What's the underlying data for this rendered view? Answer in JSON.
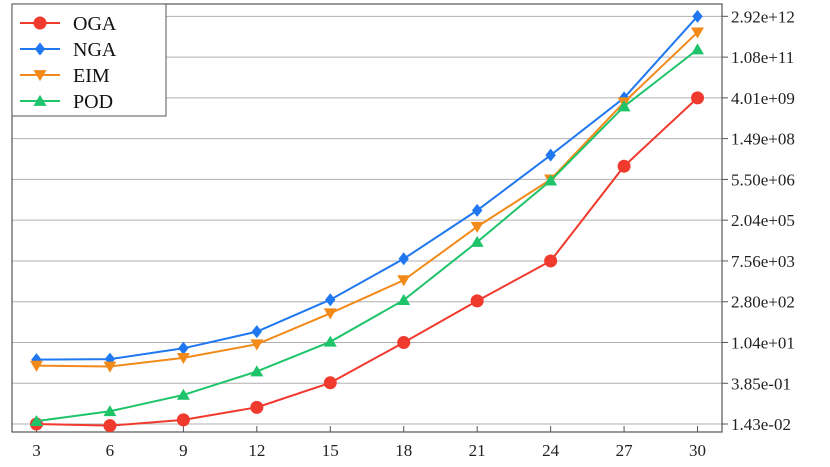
{
  "chart_data": {
    "type": "line",
    "title": "",
    "xlabel": "",
    "ylabel": "",
    "x": [
      3,
      6,
      9,
      12,
      15,
      18,
      21,
      24,
      27,
      30
    ],
    "x_ticks": [
      3,
      6,
      9,
      12,
      15,
      18,
      21,
      24,
      27,
      30
    ],
    "xlim": [
      2,
      31
    ],
    "y_scale": "log",
    "y_axis_side": "right",
    "ylim": [
      0.0075,
      7900000000000.0
    ],
    "y_ticks": [
      0.0143,
      0.385,
      10.4,
      280,
      7560,
      204000,
      5500000,
      149000000,
      4010000000,
      108000000000,
      2920000000000
    ],
    "y_tick_labels": [
      "1.43e-02",
      "3.85e-01",
      "1.04e+01",
      "2.80e+02",
      "7.56e+03",
      "2.04e+05",
      "5.50e+06",
      "1.49e+08",
      "4.01e+09",
      "1.08e+11",
      "2.92e+12"
    ],
    "grid": "horizontal",
    "legend_position": "top-left",
    "series": [
      {
        "name": "OGA",
        "color": "#f03a2e",
        "marker": "circle",
        "values": [
          0.0143,
          0.0125,
          0.02,
          0.055,
          0.4,
          10.4,
          300,
          7560,
          16000000.0,
          4010000000.0
        ]
      },
      {
        "name": "NGA",
        "color": "#1f78f0",
        "marker": "diamond",
        "values": [
          2.6,
          2.7,
          6.5,
          25,
          330,
          9000,
          450000,
          39000000.0,
          4010000000.0,
          2920000000000.0
        ]
      },
      {
        "name": "EIM",
        "color": "#f28a1a",
        "marker": "triangle-down",
        "values": [
          1.6,
          1.5,
          3.0,
          9.0,
          110,
          1600,
          120000,
          5500000.0,
          2800000000.0,
          800000000000.0
        ]
      },
      {
        "name": "POD",
        "color": "#1fc46a",
        "marker": "triangle-up",
        "values": [
          0.018,
          0.04,
          0.15,
          1.0,
          11,
          320,
          35000,
          5000000.0,
          2000000000.0,
          200000000000.0
        ]
      }
    ]
  }
}
